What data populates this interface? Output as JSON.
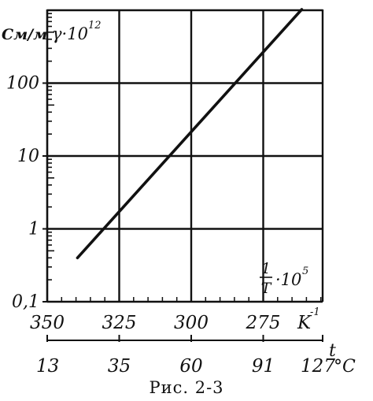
{
  "caption": "Рис. 2-3",
  "chart_data": {
    "type": "line",
    "y_unit_label": "См/м",
    "y_label": "γ·10",
    "y_label_exp": "12",
    "y_scale": "log",
    "y_ticks": [
      {
        "value": 0.1,
        "label": "0,1"
      },
      {
        "value": 1,
        "label": "1"
      },
      {
        "value": 10,
        "label": "10"
      },
      {
        "value": 100,
        "label": "100"
      }
    ],
    "ylim": [
      0.1,
      2000
    ],
    "x_label_num": "1",
    "x_label_den": "T",
    "x_label_rest": "·10",
    "x_label_exp": "5",
    "x_unit": "K",
    "x_unit_exp": "-1",
    "x_ticks": [
      {
        "value": 350,
        "label": "350"
      },
      {
        "value": 325,
        "label": "325"
      },
      {
        "value": 300,
        "label": "300"
      },
      {
        "value": 275,
        "label": "275"
      }
    ],
    "xlim": [
      350,
      250
    ],
    "x2_label": "t",
    "x2_unit": "°C",
    "x2_ticks": [
      {
        "label": "13"
      },
      {
        "label": "35"
      },
      {
        "label": "60"
      },
      {
        "label": "91"
      },
      {
        "label": "127"
      }
    ],
    "grid": true,
    "series": [
      {
        "x": [
          339.5,
          255
        ],
        "y": [
          0.4,
          2000
        ]
      }
    ],
    "line_color": "#111111"
  }
}
